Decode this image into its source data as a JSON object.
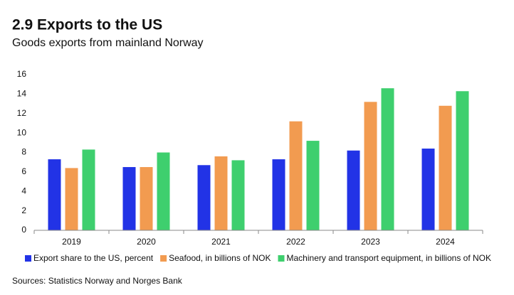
{
  "chart_data": {
    "type": "bar",
    "title": "2.9 Exports to the US",
    "subtitle": "Goods exports from mainland Norway",
    "categories": [
      "2019",
      "2020",
      "2021",
      "2022",
      "2023",
      "2024"
    ],
    "series": [
      {
        "name": "Export share to the US, percent",
        "color": "#2233e6",
        "values": [
          7.3,
          6.5,
          6.7,
          7.3,
          8.2,
          8.4
        ]
      },
      {
        "name": "Seafood, in billions of NOK",
        "color": "#f29b50",
        "values": [
          6.4,
          6.5,
          7.6,
          11.2,
          13.2,
          12.8
        ]
      },
      {
        "name": "Machinery and transport equipment, in billions of NOK",
        "color": "#3ecf6e",
        "values": [
          8.3,
          8.0,
          7.2,
          9.2,
          14.6,
          14.3
        ]
      }
    ],
    "ylim": [
      0,
      16
    ],
    "yticks": [
      0,
      2,
      4,
      6,
      8,
      10,
      12,
      14,
      16
    ],
    "grid": false,
    "source": "Sources: Statistics Norway and Norges Bank"
  }
}
